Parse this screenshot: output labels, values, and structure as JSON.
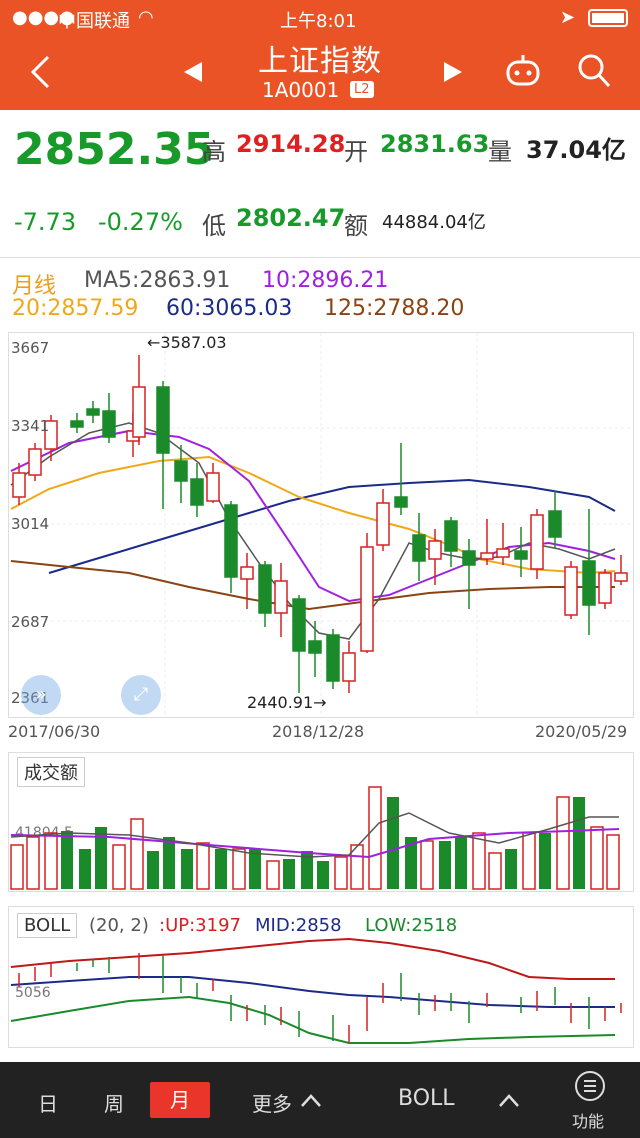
{
  "status": {
    "carrier": "中国联通",
    "time": "上午8:01"
  },
  "nav": {
    "title": "上证指数",
    "code": "1A0001",
    "badge": "L2"
  },
  "quote": {
    "price": "2852.35",
    "high_label": "高",
    "high": "2914.28",
    "open_label": "开",
    "open": "2831.63",
    "volume_label": "量",
    "volume": "37.04亿",
    "change": "-7.73",
    "change_pct": "-0.27%",
    "low_label": "低",
    "low": "2802.47",
    "amount_label": "额",
    "amount": "44884.04亿"
  },
  "ma": {
    "period_label": "月线",
    "ma5": "MA5:2863.91",
    "ma10": "10:2896.21",
    "ma20": "20:2857.59",
    "ma60": "60:3065.03",
    "ma125": "125:2788.20"
  },
  "main_chart": {
    "y_ticks": [
      "3667",
      "3341",
      "3014",
      "2687",
      "2361"
    ],
    "max_label": "←3587.03",
    "min_label": "2440.91→",
    "dates": [
      "2017/06/30",
      "2018/12/28",
      "2020/05/29"
    ]
  },
  "volume": {
    "title": "成交额",
    "axis_label": "41804.5"
  },
  "boll": {
    "label": "BOLL",
    "params": "(20, 2)",
    "up": ":UP:3197",
    "mid": "MID:2858",
    "low": "LOW:2518",
    "axis_label": "5056"
  },
  "bottom": {
    "day": "日",
    "week": "周",
    "month": "月",
    "more": "更多",
    "indicator": "BOLL",
    "func": "功能"
  },
  "colors": {
    "brand": "#e95325",
    "up": "#d62020",
    "down": "#1a8a2a"
  }
}
